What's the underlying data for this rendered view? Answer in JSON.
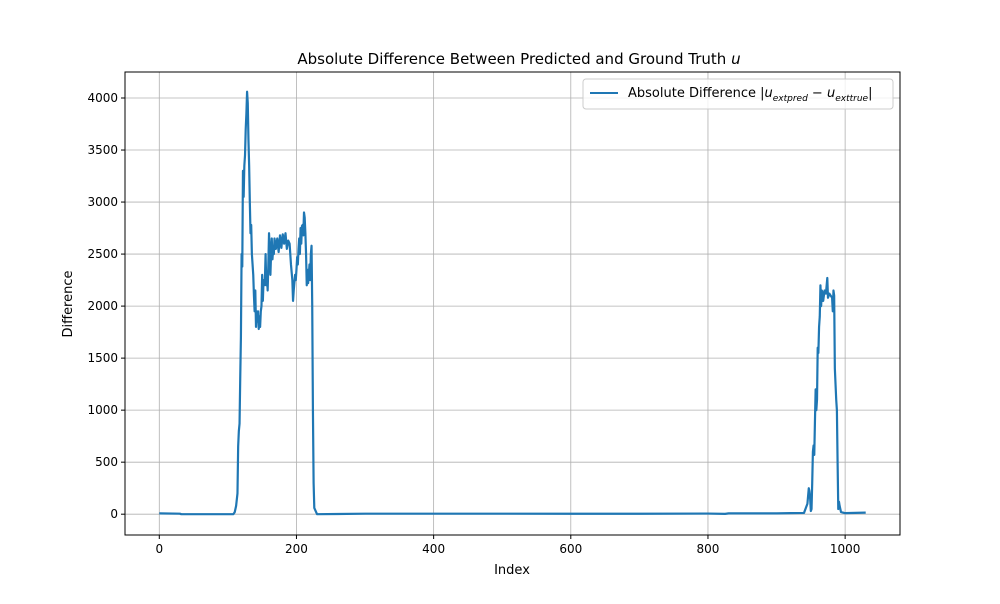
{
  "chart_data": {
    "type": "line",
    "title": "Absolute Difference Between Predicted and Ground Truth",
    "title_symbol": "u",
    "xlabel": "Index",
    "ylabel": "Difference",
    "xlim": [
      -50,
      1080
    ],
    "ylim": [
      -200,
      4250
    ],
    "xticks": [
      0,
      200,
      400,
      600,
      800,
      1000
    ],
    "yticks": [
      0,
      500,
      1000,
      1500,
      2000,
      2500,
      3000,
      3500,
      4000
    ],
    "grid": true,
    "legend_position": "top-right",
    "series": [
      {
        "name": "Absolute Difference |u_extpred − u_exttrue|",
        "legend": {
          "prefix": "Absolute Difference |",
          "symbol1": "u",
          "sub1": "extpred",
          "minus": " − ",
          "symbol2": "u",
          "sub2": "exttrue",
          "suffix": "|"
        },
        "color": "#1f77b4",
        "points": [
          [
            0,
            8
          ],
          [
            30,
            5
          ],
          [
            32,
            0
          ],
          [
            60,
            0
          ],
          [
            90,
            0
          ],
          [
            108,
            0
          ],
          [
            110,
            20
          ],
          [
            112,
            80
          ],
          [
            114,
            200
          ],
          [
            115,
            650
          ],
          [
            116,
            800
          ],
          [
            117,
            870
          ],
          [
            118,
            1300
          ],
          [
            119,
            1700
          ],
          [
            120,
            2500
          ],
          [
            121,
            2380
          ],
          [
            122,
            3300
          ],
          [
            123,
            3050
          ],
          [
            124,
            3350
          ],
          [
            125,
            3450
          ],
          [
            126,
            3700
          ],
          [
            127,
            3850
          ],
          [
            128,
            4060
          ],
          [
            129,
            3950
          ],
          [
            130,
            3600
          ],
          [
            131,
            3350
          ],
          [
            132,
            3000
          ],
          [
            133,
            2700
          ],
          [
            134,
            2780
          ],
          [
            135,
            2500
          ],
          [
            136,
            2400
          ],
          [
            137,
            2300
          ],
          [
            138,
            2100
          ],
          [
            139,
            1950
          ],
          [
            140,
            2150
          ],
          [
            141,
            1800
          ],
          [
            142,
            1950
          ],
          [
            143,
            1850
          ],
          [
            144,
            1950
          ],
          [
            145,
            1780
          ],
          [
            146,
            1900
          ],
          [
            147,
            1800
          ],
          [
            148,
            1950
          ],
          [
            149,
            2000
          ],
          [
            150,
            2300
          ],
          [
            151,
            2050
          ],
          [
            152,
            2250
          ],
          [
            153,
            2200
          ],
          [
            154,
            2250
          ],
          [
            155,
            2500
          ],
          [
            156,
            2200
          ],
          [
            157,
            2300
          ],
          [
            158,
            2150
          ],
          [
            159,
            2400
          ],
          [
            160,
            2700
          ],
          [
            161,
            2550
          ],
          [
            162,
            2300
          ],
          [
            163,
            2500
          ],
          [
            164,
            2650
          ],
          [
            165,
            2450
          ],
          [
            166,
            2550
          ],
          [
            167,
            2500
          ],
          [
            168,
            2650
          ],
          [
            170,
            2550
          ],
          [
            172,
            2650
          ],
          [
            174,
            2520
          ],
          [
            176,
            2680
          ],
          [
            178,
            2560
          ],
          [
            180,
            2690
          ],
          [
            182,
            2600
          ],
          [
            184,
            2700
          ],
          [
            186,
            2550
          ],
          [
            188,
            2630
          ],
          [
            190,
            2600
          ],
          [
            192,
            2400
          ],
          [
            194,
            2250
          ],
          [
            195,
            2050
          ],
          [
            196,
            2150
          ],
          [
            198,
            2300
          ],
          [
            199,
            2250
          ],
          [
            200,
            2350
          ],
          [
            201,
            2470
          ],
          [
            202,
            2400
          ],
          [
            203,
            2550
          ],
          [
            204,
            2650
          ],
          [
            205,
            2500
          ],
          [
            206,
            2750
          ],
          [
            207,
            2600
          ],
          [
            208,
            2770
          ],
          [
            209,
            2780
          ],
          [
            210,
            2680
          ],
          [
            211,
            2900
          ],
          [
            212,
            2850
          ],
          [
            213,
            2700
          ],
          [
            214,
            2500
          ],
          [
            215,
            2200
          ],
          [
            216,
            2350
          ],
          [
            217,
            2220
          ],
          [
            218,
            2300
          ],
          [
            219,
            2400
          ],
          [
            220,
            2250
          ],
          [
            221,
            2500
          ],
          [
            222,
            2580
          ],
          [
            223,
            2000
          ],
          [
            224,
            1000
          ],
          [
            225,
            300
          ],
          [
            226,
            60
          ],
          [
            230,
            0
          ],
          [
            260,
            2
          ],
          [
            300,
            5
          ],
          [
            400,
            5
          ],
          [
            500,
            5
          ],
          [
            600,
            4
          ],
          [
            700,
            4
          ],
          [
            800,
            6
          ],
          [
            825,
            3
          ],
          [
            830,
            8
          ],
          [
            900,
            8
          ],
          [
            920,
            10
          ],
          [
            940,
            12
          ],
          [
            945,
            100
          ],
          [
            947,
            250
          ],
          [
            948,
            220
          ],
          [
            949,
            150
          ],
          [
            950,
            30
          ],
          [
            951,
            50
          ],
          [
            952,
            300
          ],
          [
            953,
            600
          ],
          [
            954,
            660
          ],
          [
            955,
            570
          ],
          [
            956,
            900
          ],
          [
            957,
            1200
          ],
          [
            958,
            1000
          ],
          [
            959,
            1100
          ],
          [
            960,
            1600
          ],
          [
            961,
            1550
          ],
          [
            962,
            1800
          ],
          [
            963,
            1900
          ],
          [
            964,
            2200
          ],
          [
            965,
            2000
          ],
          [
            966,
            2150
          ],
          [
            967,
            2130
          ],
          [
            968,
            2050
          ],
          [
            970,
            2150
          ],
          [
            972,
            2120
          ],
          [
            974,
            2270
          ],
          [
            975,
            2080
          ],
          [
            977,
            2120
          ],
          [
            979,
            2100
          ],
          [
            981,
            2080
          ],
          [
            982,
            1950
          ],
          [
            983,
            2150
          ],
          [
            984,
            2100
          ],
          [
            985,
            1400
          ],
          [
            986,
            1250
          ],
          [
            987,
            1100
          ],
          [
            988,
            1000
          ],
          [
            989,
            500
          ],
          [
            990,
            50
          ],
          [
            991,
            120
          ],
          [
            992,
            80
          ],
          [
            994,
            20
          ],
          [
            1000,
            10
          ],
          [
            1030,
            15
          ]
        ]
      }
    ]
  }
}
